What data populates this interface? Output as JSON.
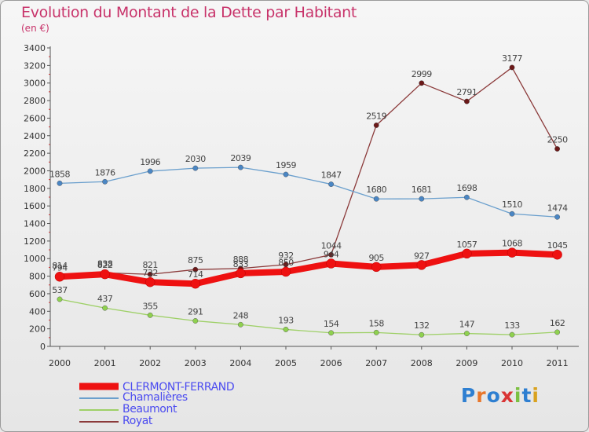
{
  "header": {
    "title": "Evolution du Montant de la Dette par Habitant",
    "subtitle": "(en €)"
  },
  "brand": {
    "letters": [
      "P",
      "r",
      "o",
      "x",
      "i",
      "t",
      "i"
    ],
    "colors": [
      "#2e7fd1",
      "#e8762a",
      "#2e7fd1",
      "#d93434",
      "#7cc042",
      "#2e7fd1",
      "#d9a21f"
    ]
  },
  "chart_data": {
    "type": "line",
    "title": "Evolution du Montant de la Dette par Habitant",
    "subtitle": "(en €)",
    "categories": [
      "2000",
      "2001",
      "2002",
      "2003",
      "2004",
      "2005",
      "2006",
      "2007",
      "2008",
      "2009",
      "2010",
      "2011"
    ],
    "ylim": [
      0,
      3400
    ],
    "yticks": [
      0,
      200,
      400,
      600,
      800,
      1000,
      1200,
      1400,
      1600,
      1800,
      2000,
      2200,
      2400,
      2600,
      2800,
      3000,
      3200,
      3400
    ],
    "grid": false,
    "legend_position": "bottom-left",
    "series": [
      {
        "name": "CLERMONT-FERRAND",
        "color": "#ee1111",
        "emphasis": true,
        "values": [
          794,
          822,
          732,
          714,
          833,
          850,
          944,
          905,
          927,
          1057,
          1068,
          1045
        ]
      },
      {
        "name": "Chamalières",
        "color": "#6a9fcd",
        "marker": "#4a86c4",
        "values": [
          1858,
          1876,
          1996,
          2030,
          2039,
          1959,
          1847,
          1680,
          1681,
          1698,
          1510,
          1474
        ]
      },
      {
        "name": "Beaumont",
        "color": "#9ed067",
        "marker": "#8fd14f",
        "values": [
          537,
          437,
          355,
          291,
          248,
          193,
          154,
          158,
          132,
          147,
          133,
          162
        ]
      },
      {
        "name": "Royat",
        "color": "#8b3a3a",
        "marker": "#6b1818",
        "values": [
          814,
          838,
          821,
          875,
          888,
          932,
          1044,
          2519,
          2999,
          2791,
          3177,
          2250
        ]
      }
    ]
  }
}
